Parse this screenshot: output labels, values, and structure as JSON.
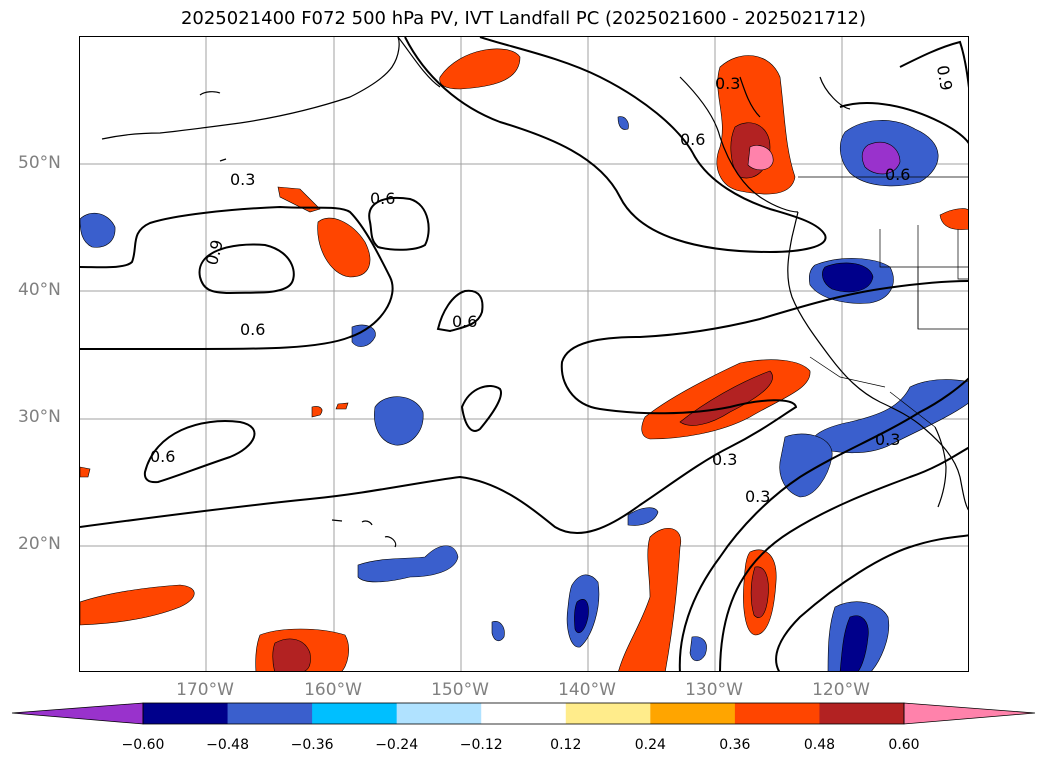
{
  "title": "2025021400 F072 500 hPa PV, IVT Landfall PC (2025021600 - 2025021712)",
  "lat_labels": [
    "50°N",
    "40°N",
    "30°N",
    "20°N"
  ],
  "lon_labels": [
    "170°W",
    "160°W",
    "150°W",
    "140°W",
    "130°W",
    "120°W"
  ],
  "contour_labels": [
    "0.3",
    "0.3",
    "0.3",
    "0.3",
    "0.3",
    "0.6",
    "0.6",
    "0.6",
    "0.6",
    "0.6",
    "0.6",
    "0.9",
    "0.9"
  ],
  "colorbar": {
    "ticks": [
      "−0.60",
      "−0.48",
      "−0.36",
      "−0.24",
      "−0.12",
      "0.12",
      "0.24",
      "0.36",
      "0.48",
      "0.60"
    ],
    "colors": [
      "#9932cc",
      "#00008b",
      "#3a5fcd",
      "#00bfff",
      "#b0e2ff",
      "#ffffff",
      "#ffec8b",
      "#ffa500",
      "#ff4500",
      "#b22222",
      "#ff82ab"
    ]
  }
}
